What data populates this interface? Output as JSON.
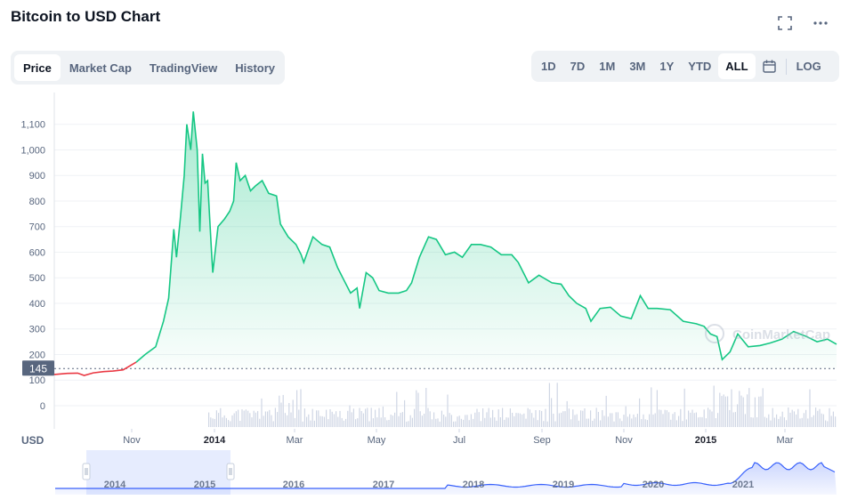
{
  "header": {
    "title": "Bitcoin to USD Chart"
  },
  "tabs": [
    {
      "label": "Price",
      "active": true
    },
    {
      "label": "Market Cap",
      "active": false
    },
    {
      "label": "TradingView",
      "active": false
    },
    {
      "label": "History",
      "active": false
    }
  ],
  "ranges": [
    "1D",
    "7D",
    "1M",
    "3M",
    "1Y",
    "YTD",
    "ALL"
  ],
  "active_range": "ALL",
  "log_label": "LOG",
  "icons": {
    "fullscreen": "fullscreen-icon",
    "more": "more-icon",
    "calendar": "calendar-icon"
  },
  "colors": {
    "up": "#16c784",
    "down": "#ea3943",
    "navigator": "#3861fb"
  },
  "watermark": "CoinMarketCap",
  "price_badge": "145",
  "currency_label": "USD",
  "chart_data": {
    "type": "line",
    "ylim": [
      100,
      1170
    ],
    "yticks": [
      "1,100",
      "1,000",
      "900",
      "800",
      "700",
      "600",
      "500",
      "400",
      "300",
      "200",
      "100"
    ],
    "volume_tick": "0",
    "xticks": [
      "Nov",
      "2014",
      "Mar",
      "May",
      "Jul",
      "Sep",
      "Nov",
      "2015",
      "Mar"
    ],
    "reference_price": 145,
    "price_series": [
      [
        "2013-08-18",
        122
      ],
      [
        "2013-08-28",
        126
      ],
      [
        "2013-09-05",
        127
      ],
      [
        "2013-09-10",
        118
      ],
      [
        "2013-09-17",
        128
      ],
      [
        "2013-09-25",
        133
      ],
      [
        "2013-10-02",
        135
      ],
      [
        "2013-10-10",
        140
      ],
      [
        "2013-10-20",
        170
      ],
      [
        "2013-10-27",
        200
      ],
      [
        "2013-11-04",
        230
      ],
      [
        "2013-11-10",
        330
      ],
      [
        "2013-11-14",
        420
      ],
      [
        "2013-11-18",
        690
      ],
      [
        "2013-11-20",
        580
      ],
      [
        "2013-11-23",
        730
      ],
      [
        "2013-11-26",
        900
      ],
      [
        "2013-11-28",
        1100
      ],
      [
        "2013-12-01",
        1000
      ],
      [
        "2013-12-03",
        1150
      ],
      [
        "2013-12-06",
        1000
      ],
      [
        "2013-12-08",
        680
      ],
      [
        "2013-12-10",
        985
      ],
      [
        "2013-12-12",
        870
      ],
      [
        "2013-12-14",
        880
      ],
      [
        "2013-12-17",
        600
      ],
      [
        "2013-12-18",
        520
      ],
      [
        "2013-12-22",
        700
      ],
      [
        "2013-12-27",
        730
      ],
      [
        "2013-12-31",
        760
      ],
      [
        "2014-01-03",
        800
      ],
      [
        "2014-01-05",
        950
      ],
      [
        "2014-01-08",
        880
      ],
      [
        "2014-01-12",
        900
      ],
      [
        "2014-01-16",
        840
      ],
      [
        "2014-01-20",
        860
      ],
      [
        "2014-01-25",
        880
      ],
      [
        "2014-01-30",
        830
      ],
      [
        "2014-02-05",
        820
      ],
      [
        "2014-02-08",
        710
      ],
      [
        "2014-02-14",
        660
      ],
      [
        "2014-02-20",
        630
      ],
      [
        "2014-02-24",
        590
      ],
      [
        "2014-02-26",
        560
      ],
      [
        "2014-03-05",
        660
      ],
      [
        "2014-03-12",
        630
      ],
      [
        "2014-03-18",
        620
      ],
      [
        "2014-03-24",
        540
      ],
      [
        "2014-03-28",
        500
      ],
      [
        "2014-04-03",
        440
      ],
      [
        "2014-04-08",
        460
      ],
      [
        "2014-04-10",
        380
      ],
      [
        "2014-04-15",
        520
      ],
      [
        "2014-04-20",
        500
      ],
      [
        "2014-04-25",
        450
      ],
      [
        "2014-05-02",
        440
      ],
      [
        "2014-05-10",
        440
      ],
      [
        "2014-05-16",
        450
      ],
      [
        "2014-05-20",
        480
      ],
      [
        "2014-05-26",
        580
      ],
      [
        "2014-06-02",
        660
      ],
      [
        "2014-06-08",
        650
      ],
      [
        "2014-06-15",
        590
      ],
      [
        "2014-06-22",
        600
      ],
      [
        "2014-06-28",
        580
      ],
      [
        "2014-07-05",
        630
      ],
      [
        "2014-07-12",
        630
      ],
      [
        "2014-07-20",
        620
      ],
      [
        "2014-07-28",
        590
      ],
      [
        "2014-08-05",
        590
      ],
      [
        "2014-08-10",
        560
      ],
      [
        "2014-08-18",
        480
      ],
      [
        "2014-08-26",
        510
      ],
      [
        "2014-09-05",
        480
      ],
      [
        "2014-09-12",
        475
      ],
      [
        "2014-09-18",
        430
      ],
      [
        "2014-09-24",
        400
      ],
      [
        "2014-10-01",
        380
      ],
      [
        "2014-10-05",
        330
      ],
      [
        "2014-10-12",
        380
      ],
      [
        "2014-10-20",
        385
      ],
      [
        "2014-10-28",
        350
      ],
      [
        "2014-11-05",
        340
      ],
      [
        "2014-11-12",
        430
      ],
      [
        "2014-11-18",
        380
      ],
      [
        "2014-11-25",
        380
      ],
      [
        "2014-12-05",
        375
      ],
      [
        "2014-12-15",
        330
      ],
      [
        "2014-12-25",
        320
      ],
      [
        "2014-12-31",
        310
      ],
      [
        "2015-01-05",
        280
      ],
      [
        "2015-01-10",
        270
      ],
      [
        "2015-01-14",
        180
      ],
      [
        "2015-01-20",
        210
      ],
      [
        "2015-01-26",
        280
      ],
      [
        "2015-02-03",
        230
      ],
      [
        "2015-02-12",
        235
      ],
      [
        "2015-02-20",
        245
      ],
      [
        "2015-03-01",
        260
      ],
      [
        "2015-03-10",
        290
      ],
      [
        "2015-03-20",
        270
      ],
      [
        "2015-03-28",
        250
      ],
      [
        "2015-04-05",
        260
      ],
      [
        "2015-04-12",
        240
      ]
    ],
    "navigator": {
      "labels": [
        "2014",
        "2015",
        "2016",
        "2017",
        "2018",
        "2019",
        "2020",
        "2021"
      ]
    }
  }
}
